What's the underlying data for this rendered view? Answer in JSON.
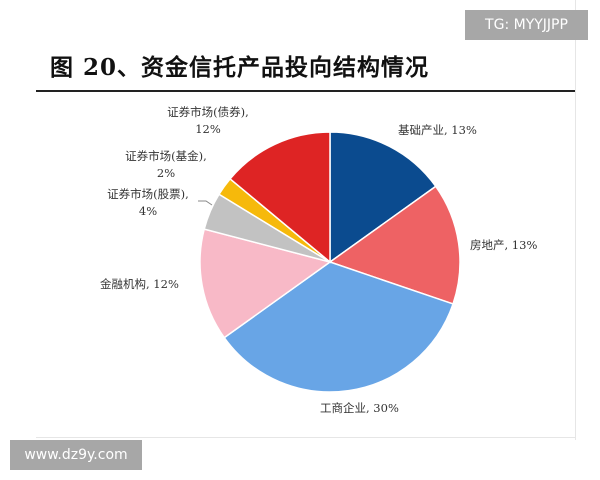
{
  "watermarks": {
    "top": "TG: MYYJJPP",
    "bottom": "www.dz9y.com"
  },
  "chart_data": {
    "type": "pie",
    "title": "图 20、资金信托产品投向结构情况",
    "start": "12 o'clock",
    "direction": "clockwise",
    "slices": [
      {
        "label": "基础产业",
        "value": 13,
        "text": "基础产业, 13%",
        "color": "#0b4b8f"
      },
      {
        "label": "房地产",
        "value": 13,
        "text": "房地产, 13%",
        "color": "#ee6264"
      },
      {
        "label": "工商企业",
        "value": 30,
        "text": "工商企业, 30%",
        "color": "#68a5e6"
      },
      {
        "label": "金融机构",
        "value": 12,
        "text": "金融机构, 12%",
        "color": "#f8b9c7"
      },
      {
        "label": "证券市场(股票)",
        "value": 4,
        "text": "证券市场(股票),",
        "text2": "4%",
        "color": "#c2c2c2"
      },
      {
        "label": "证券市场(基金)",
        "value": 2,
        "text": "证券市场(基金),",
        "text2": "2%",
        "color": "#f6b90b"
      },
      {
        "label": "证券市场(债券)",
        "value": 12,
        "text": "证券市场(债券),",
        "text2": "12%",
        "color": "#de2424"
      }
    ]
  }
}
